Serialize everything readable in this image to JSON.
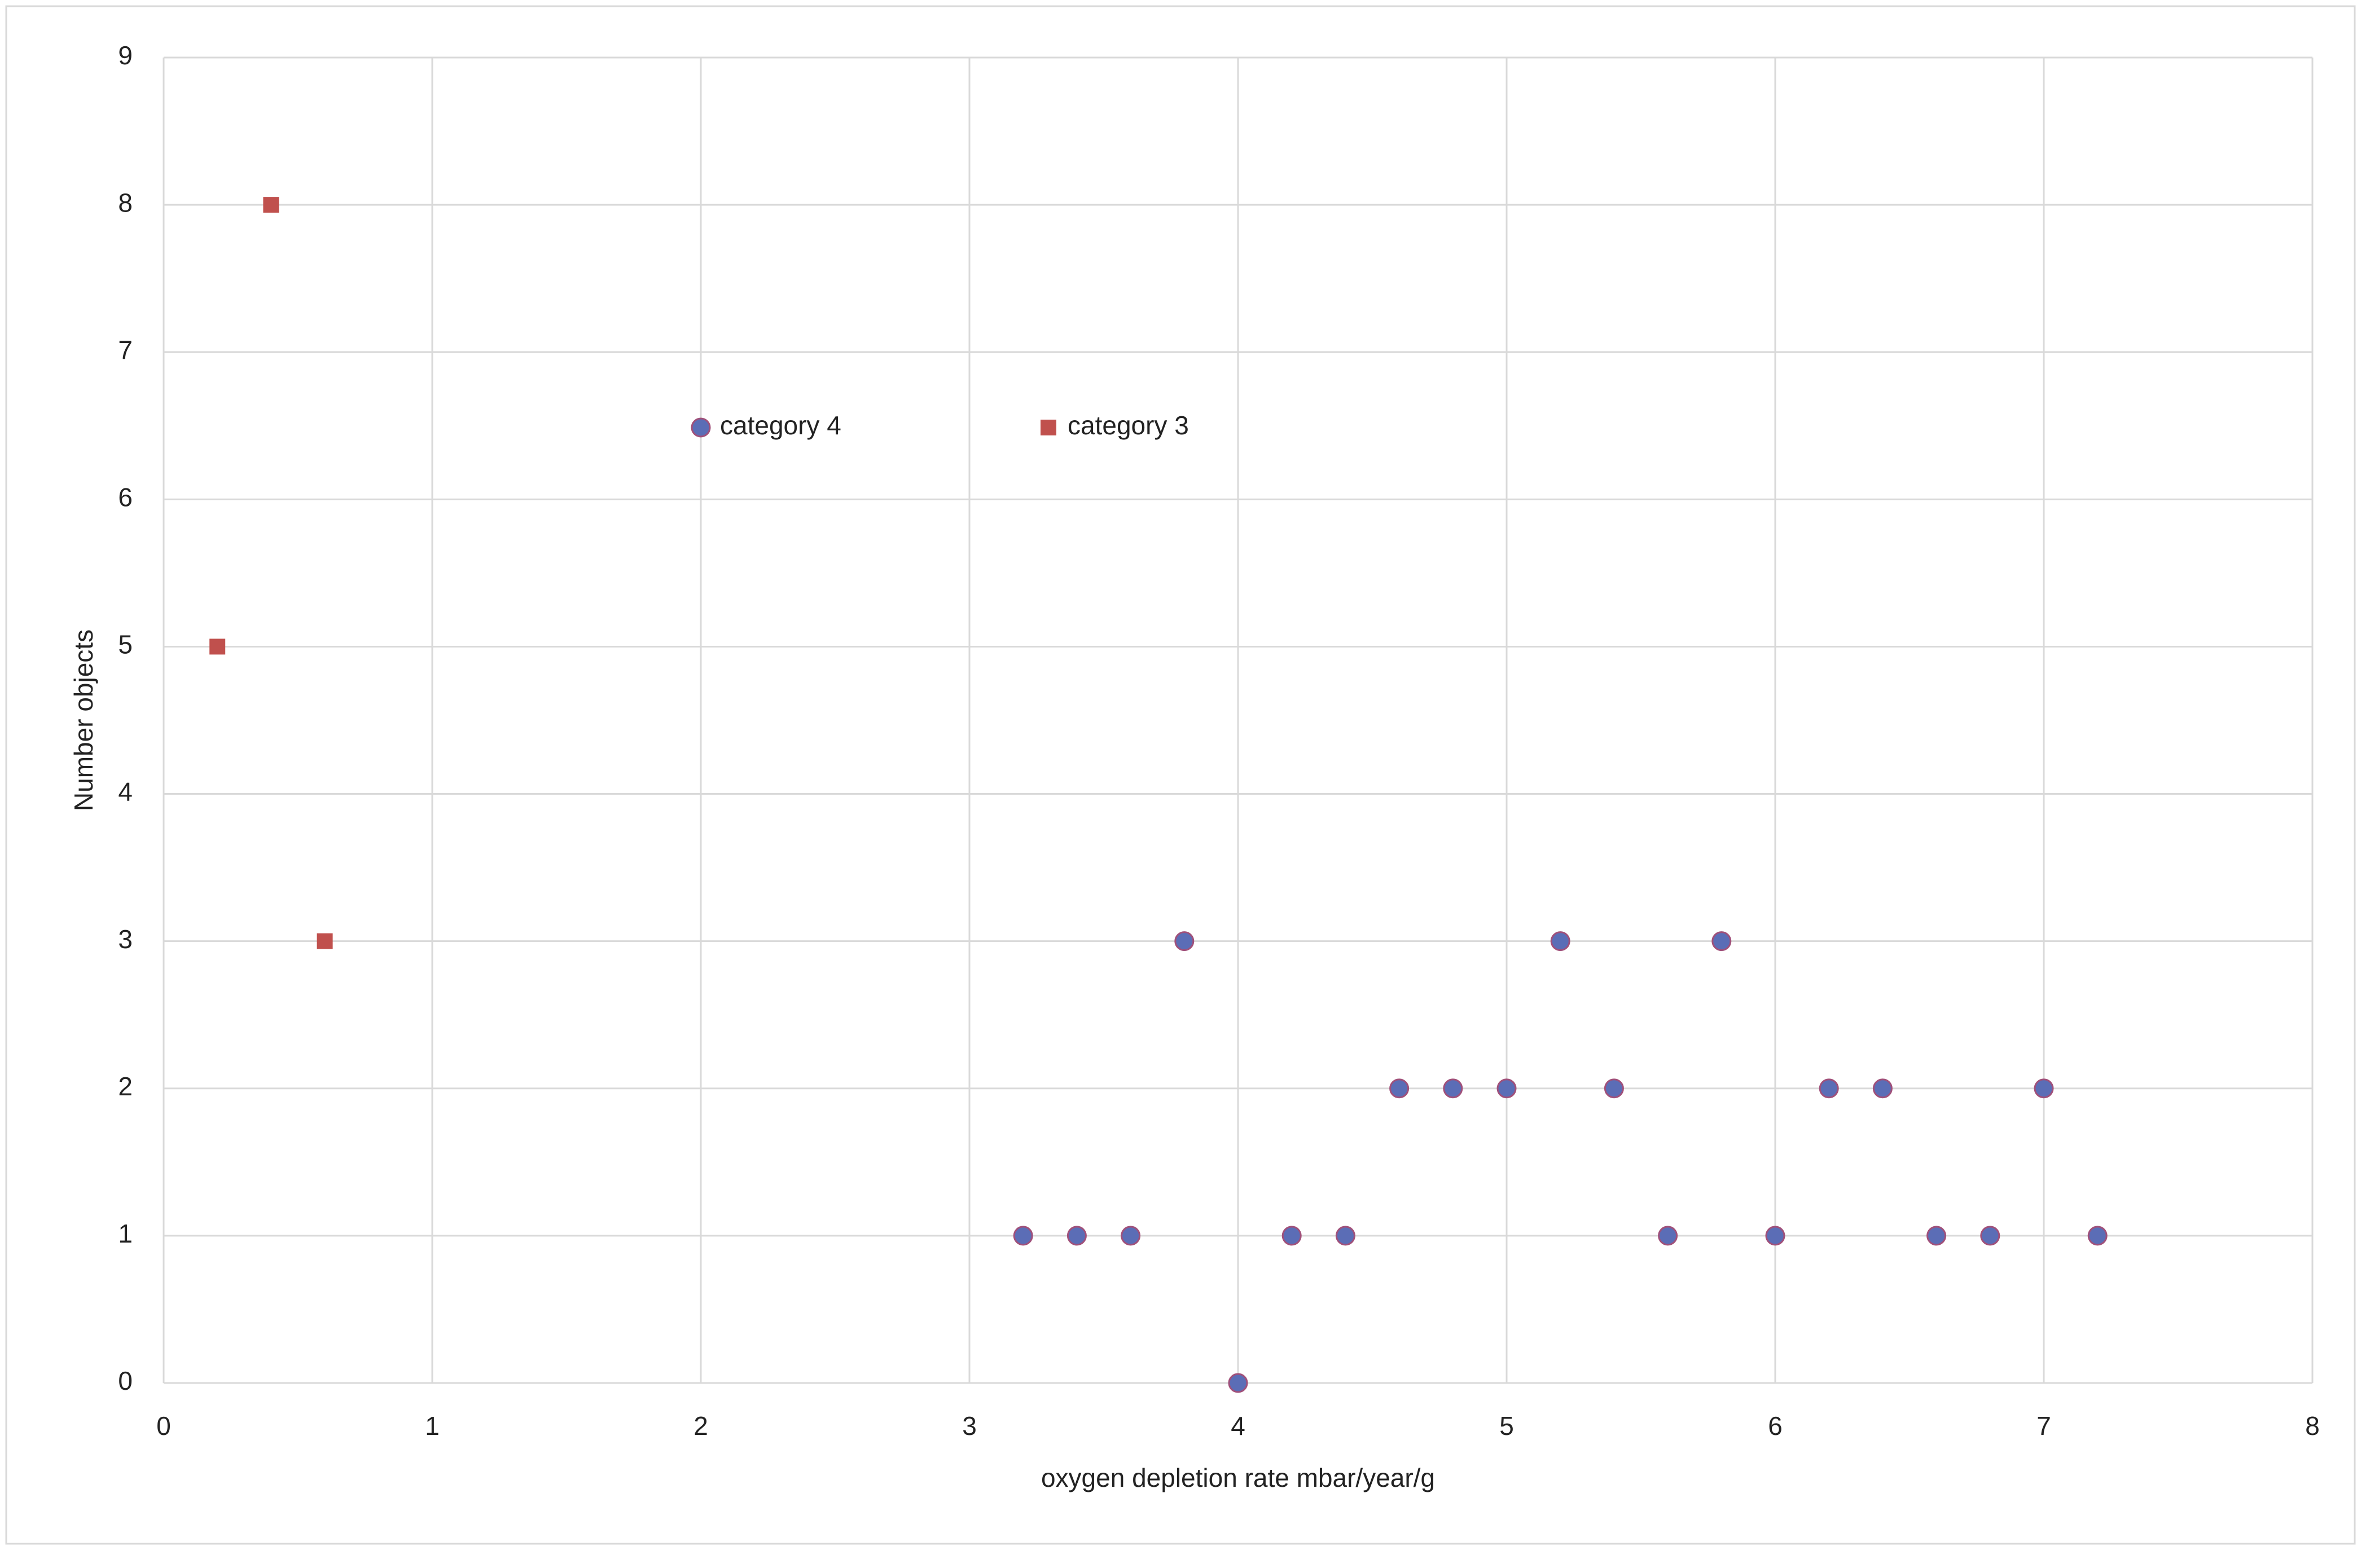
{
  "chart_data": {
    "type": "scatter",
    "x_label": "oxygen depletion rate mbar/year/g",
    "y_label": "Number objects",
    "xlim": [
      0,
      8
    ],
    "xticks": [
      0,
      1,
      2,
      3,
      4,
      5,
      6,
      7,
      8
    ],
    "ylim": [
      0,
      9
    ],
    "yticks": [
      0,
      1,
      2,
      3,
      4,
      5,
      6,
      7,
      8,
      9
    ],
    "grid": true,
    "series": [
      {
        "name": "category 4",
        "color": "#5b6db6",
        "marker": "circle",
        "x": [
          3.2,
          3.4,
          3.6,
          3.8,
          4.0,
          4.2,
          4.4,
          4.6,
          4.8,
          5.0,
          5.2,
          5.4,
          5.6,
          5.8,
          6.0,
          6.2,
          6.4,
          6.6,
          6.8,
          7.0,
          7.2
        ],
        "values": [
          1,
          1,
          1,
          3,
          0,
          1,
          1,
          2,
          2,
          2,
          3,
          2,
          1,
          3,
          1,
          2,
          2,
          1,
          1,
          2,
          1
        ]
      },
      {
        "name": "category 3",
        "color": "#c0504d",
        "marker": "square",
        "x": [
          0.2,
          0.4,
          0.6
        ],
        "values": [
          5,
          8,
          3
        ]
      }
    ]
  }
}
